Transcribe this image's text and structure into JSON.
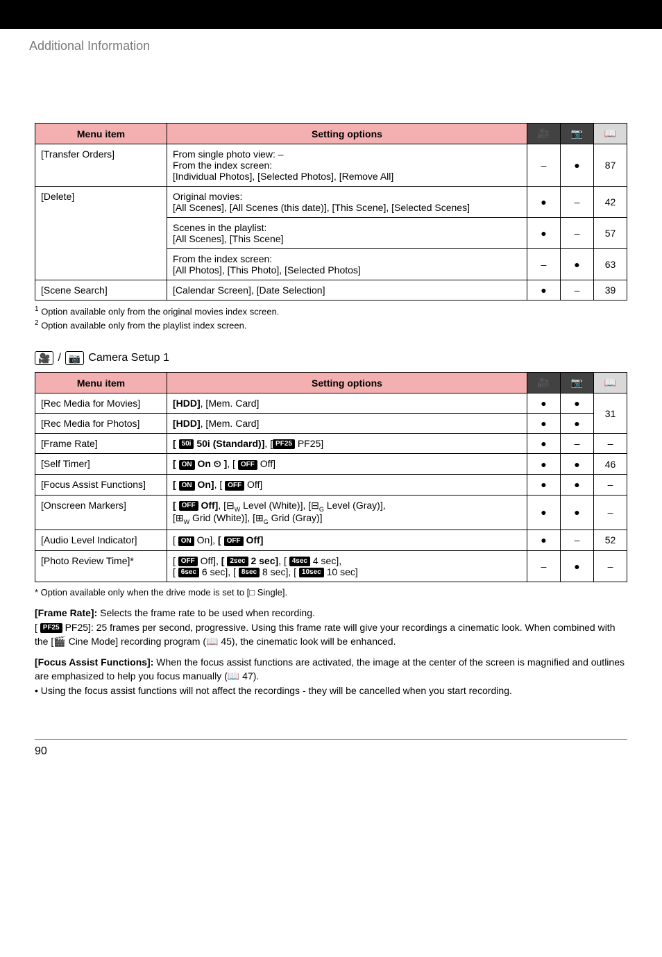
{
  "header": {
    "section_title": "Additional Information"
  },
  "table1": {
    "headers": {
      "menu": "Menu item",
      "setting": "Setting options"
    },
    "header_icons": {
      "movie": "🎥",
      "photo": "📷",
      "page": "📖"
    },
    "rows": [
      {
        "menu": "[Transfer Orders]",
        "setting_lines": [
          "From single photo view: –",
          "From the index screen:",
          "[Individual Photos], [Selected Photos], [Remove All]"
        ],
        "movie": "–",
        "photo": "●",
        "page": "87"
      },
      {
        "menu": "[Delete]",
        "cells": [
          {
            "lines": [
              "Original movies:",
              "[All Scenes], [All Scenes (this date)], [This Scene], [Selected Scenes]"
            ],
            "movie": "●",
            "photo": "–",
            "page": "42"
          },
          {
            "lines": [
              "Scenes in the playlist:",
              "[All Scenes], [This Scene]"
            ],
            "movie": "●",
            "photo": "–",
            "page": "57"
          },
          {
            "lines": [
              "From the index screen:",
              "[All Photos], [This Photo], [Selected Photos]"
            ],
            "movie": "–",
            "photo": "●",
            "page": "63"
          }
        ]
      },
      {
        "menu": "[Scene Search]",
        "setting_lines": [
          "[Calendar Screen], [Date Selection]"
        ],
        "movie": "●",
        "photo": "–",
        "page": "39"
      }
    ]
  },
  "footnotes1": {
    "n1": "Option available only from the original movies index screen.",
    "n2": "Option available only from the playlist index screen."
  },
  "camera_heading": "Camera Setup 1",
  "table2": {
    "headers": {
      "menu": "Menu item",
      "setting": "Setting options"
    },
    "rows": [
      {
        "menu": "[Rec Media for Movies]",
        "setting": "[HDD], [Mem. Card]",
        "bold_part": "[HDD]",
        "rest": ", [Mem. Card]",
        "movie": "●",
        "photo": "●",
        "page": "31"
      },
      {
        "menu": "[Rec Media for Photos]",
        "bold_part": "[HDD]",
        "rest": ", [Mem. Card]",
        "movie": "●",
        "photo": "●",
        "page": ""
      },
      {
        "menu": "[Frame Rate]",
        "movie": "●",
        "photo": "–",
        "page": "–"
      },
      {
        "menu": "[Self Timer]",
        "movie": "●",
        "photo": "●",
        "page": "46"
      },
      {
        "menu": "[Focus Assist Functions]",
        "movie": "●",
        "photo": "●",
        "page": "–"
      },
      {
        "menu": "[Onscreen Markers]",
        "movie": "●",
        "photo": "●",
        "page": "–"
      },
      {
        "menu": "[Audio Level Indicator]",
        "movie": "●",
        "photo": "–",
        "page": "52"
      },
      {
        "menu": "[Photo Review Time]*",
        "movie": "–",
        "photo": "●",
        "page": "–"
      }
    ],
    "frame_rate": {
      "badge1": "50i",
      "opt1": " 50i (Standard)]",
      "badge2": "PF25",
      "opt2": " PF25]"
    },
    "self_timer": {
      "on_badge": "ON",
      "on_text": " On ",
      "timer_icon": "⏱",
      "off_badge": "OFF",
      "off_text": " Off]"
    },
    "focus_assist": {
      "on_badge": "ON",
      "on_text": " On]",
      "off_badge": "OFF",
      "off_text": " Off]"
    },
    "onscreen": {
      "off_badge": "OFF",
      "off_text": " Off]",
      "level_w": " Level (White)]",
      "level_g": " Level (Gray)]",
      "grid_w": " Grid (White)]",
      "grid_g": " Grid (Gray)]"
    },
    "audio": {
      "on_badge": "ON",
      "on_text": " On]",
      "off_badge": "OFF",
      "off_text": " Off]"
    },
    "photo_review": {
      "off_badge": "OFF",
      "off_text": " Off]",
      "b2": "2sec",
      "t2": " 2 sec]",
      "b4": "4sec",
      "t4": " 4 sec]",
      "b6": "6sec",
      "t6": " 6 sec]",
      "b8": "8sec",
      "t8": " 8 sec]",
      "b10": "10sec",
      "t10": " 10 sec]"
    }
  },
  "footnote2": "* Option available only when the drive mode is set to [□ Single].",
  "frame_rate_para": {
    "title": "[Frame Rate]:",
    "text1": " Selects the frame rate to be used when recording.",
    "badge": "PF25",
    "text2": " PF25]: 25 frames per second, progressive. Using this frame rate will give your recordings a cinematic look. When combined with the [",
    "cine": "🎬",
    "text3": " Cine Mode] recording program (📖 45), the cinematic look will be enhanced."
  },
  "focus_para": {
    "title": "[Focus Assist Functions]:",
    "text1": " When the focus assist functions are activated, the image at the center of the screen is magnified and outlines are emphasized to help you focus manually (📖 47).",
    "bullet": "• Using the focus assist functions will not affect the recordings - they will be cancelled when you start recording."
  },
  "page_number": "90"
}
